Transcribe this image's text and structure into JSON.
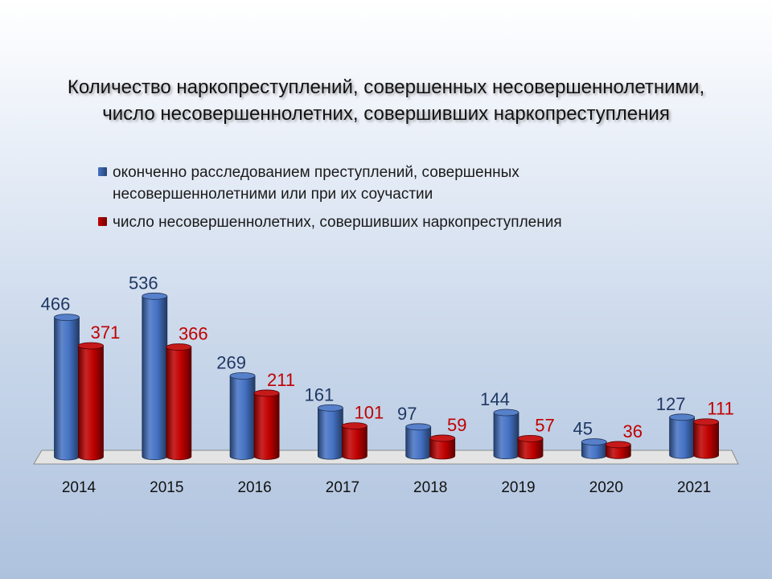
{
  "title": {
    "line1": "Количество наркопреступлений, совершенных несовершеннолетними,",
    "line2": "число несовершеннолетних, совершивших наркопреступления"
  },
  "legend": [
    {
      "line1": "оконченно расследованием преступлений, совершенных",
      "line2": "несовершеннолетними или при их соучастии",
      "color": "#4472C4"
    },
    {
      "line1": "число несовершеннолетних,  совершивших наркопреступления",
      "line2": "",
      "color": "#C00000"
    }
  ],
  "chart_data": {
    "type": "bar",
    "categories": [
      "2014",
      "2015",
      "2016",
      "2017",
      "2018",
      "2019",
      "2020",
      "2021"
    ],
    "series": [
      {
        "values": [
          466,
          536,
          269,
          161,
          97,
          144,
          45,
          127
        ],
        "color": "#4472C4",
        "label_color": "#1F3864"
      },
      {
        "values": [
          371,
          366,
          211,
          101,
          59,
          57,
          36,
          111
        ],
        "color": "#C00000",
        "label_color": "#C00000"
      }
    ],
    "ylim": [
      0,
      560
    ],
    "grid": false,
    "legend": "top",
    "style": "3d-cylinder"
  }
}
